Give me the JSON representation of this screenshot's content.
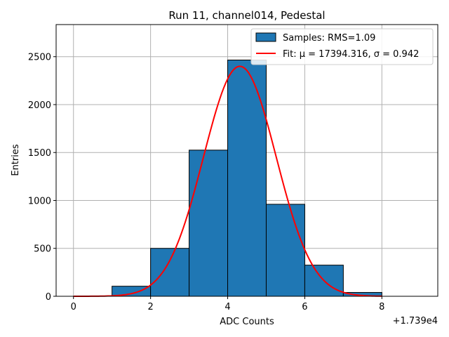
{
  "chart_data": {
    "type": "bar",
    "title": "Run 11, channel014, Pedestal",
    "xlabel": "ADC Counts",
    "ylabel": "Entries",
    "offset_label": "+1.739e4",
    "xlim": [
      -0.45,
      9.45
    ],
    "ylim": [
      0,
      2835
    ],
    "grid": true,
    "x_ticks": [
      0,
      2,
      4,
      6,
      8
    ],
    "x_tick_labels": [
      "0",
      "2",
      "4",
      "6",
      "8"
    ],
    "y_ticks": [
      0,
      500,
      1000,
      1500,
      2000,
      2500
    ],
    "y_tick_labels": [
      "0",
      "500",
      "1000",
      "1500",
      "2000",
      "2500"
    ],
    "histogram": {
      "name": "Samples: RMS=1.09",
      "color": "#1f77b4",
      "edge_color": "#000000",
      "bins": [
        {
          "x0": 0,
          "x1": 1,
          "count": 0
        },
        {
          "x0": 1,
          "x1": 2,
          "count": 105
        },
        {
          "x0": 2,
          "x1": 3,
          "count": 500
        },
        {
          "x0": 3,
          "x1": 4,
          "count": 1525
        },
        {
          "x0": 4,
          "x1": 5,
          "count": 2465
        },
        {
          "x0": 5,
          "x1": 6,
          "count": 960
        },
        {
          "x0": 6,
          "x1": 7,
          "count": 325
        },
        {
          "x0": 7,
          "x1": 8,
          "count": 40
        },
        {
          "x0": 8,
          "x1": 9,
          "count": 0
        }
      ]
    },
    "fit": {
      "name": "Fit: μ = 17394.316, σ = 0.942",
      "color": "#ff0000",
      "mu": 4.316,
      "sigma": 0.942,
      "amplitude": 2400,
      "x_range": [
        0,
        8
      ]
    },
    "legend_position": "upper right"
  }
}
